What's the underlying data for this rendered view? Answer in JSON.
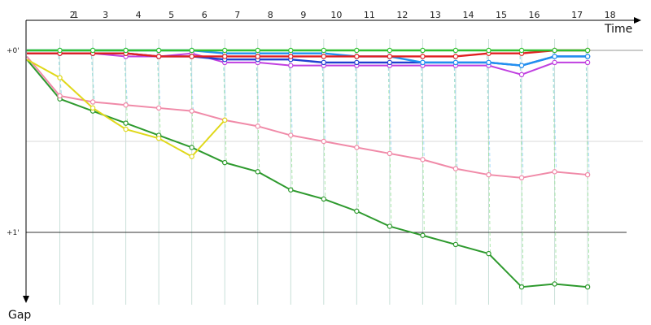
{
  "chart_data": {
    "type": "line",
    "x_axis_title": "Time",
    "y_axis_title": "Gap",
    "lap_labels": [
      "1",
      "2",
      "3",
      "4",
      "5",
      "6",
      "7",
      "8",
      "9",
      "10",
      "11",
      "12",
      "13",
      "14",
      "15",
      "16",
      "17",
      "18"
    ],
    "y_tick_labels": [
      "+0'",
      "+1'"
    ],
    "y_ticks": [
      0,
      60
    ],
    "ylim": [
      0,
      80
    ],
    "xlim": [
      0,
      18.7
    ],
    "grid": true,
    "series": [
      {
        "color": "#2e9a2e",
        "x": [
          0,
          1,
          2,
          3,
          4,
          5,
          6,
          7,
          8,
          9,
          10,
          11,
          12,
          13,
          14,
          15,
          16,
          17
        ],
        "y": [
          3,
          16,
          20,
          24,
          28,
          32,
          37,
          40,
          46,
          49,
          53,
          58,
          61,
          64,
          67,
          78,
          77,
          78
        ]
      },
      {
        "color": "#f08aa8",
        "x": [
          0,
          1,
          2,
          3,
          4,
          5,
          6,
          7,
          8,
          9,
          10,
          11,
          12,
          13,
          14,
          15,
          16,
          17
        ],
        "y": [
          2,
          15,
          17,
          18,
          19,
          20,
          23,
          25,
          28,
          30,
          32,
          34,
          36,
          39,
          41,
          42,
          40,
          41
        ]
      },
      {
        "color": "#e0d81a",
        "x": [
          0,
          1,
          2,
          3,
          4,
          5,
          6
        ],
        "y": [
          3,
          9,
          19,
          26,
          29,
          35,
          23
        ]
      },
      {
        "color": "#c040e0",
        "x": [
          0,
          1,
          2,
          3,
          4,
          5,
          6,
          7,
          8,
          9,
          10,
          11,
          12,
          13,
          14,
          15,
          16,
          17
        ],
        "y": [
          1,
          1,
          1,
          2,
          2,
          1,
          4,
          4,
          5,
          5,
          5,
          5,
          5,
          5,
          5,
          8,
          4,
          4
        ]
      },
      {
        "color": "#2040d0",
        "x": [
          0,
          1,
          2,
          3,
          4,
          5,
          6,
          7,
          8,
          9,
          10,
          11,
          12,
          13,
          14,
          15,
          16,
          17
        ],
        "y": [
          1,
          1,
          1,
          1,
          2,
          2,
          3,
          3,
          3,
          4,
          4,
          4,
          4,
          4,
          4,
          5,
          2,
          2
        ]
      },
      {
        "color": "#2090f0",
        "x": [
          0,
          1,
          2,
          3,
          4,
          5,
          6,
          7,
          8,
          9,
          10,
          11,
          12,
          13,
          14,
          15,
          16,
          17
        ],
        "y": [
          0,
          0,
          0,
          0,
          0,
          0,
          1,
          1,
          1,
          1,
          2,
          2,
          4,
          4,
          4,
          5,
          2,
          2
        ]
      },
      {
        "color": "#e02020",
        "x": [
          0,
          1,
          2,
          3,
          4,
          5,
          6,
          7,
          8,
          9,
          10,
          11,
          12,
          13,
          14,
          15,
          16,
          17
        ],
        "y": [
          1,
          1,
          1,
          1,
          2,
          2,
          2,
          2,
          2,
          2,
          2,
          2,
          2,
          2,
          1,
          1,
          0,
          0
        ]
      },
      {
        "color": "#30c030",
        "x": [
          0,
          1,
          2,
          3,
          4,
          5,
          6,
          7,
          8,
          9,
          10,
          11,
          12,
          13,
          14,
          15,
          16,
          17
        ],
        "y": [
          0,
          0,
          0,
          0,
          0,
          0,
          0,
          0,
          0,
          0,
          0,
          0,
          0,
          0,
          0,
          0,
          0,
          0
        ]
      }
    ]
  }
}
